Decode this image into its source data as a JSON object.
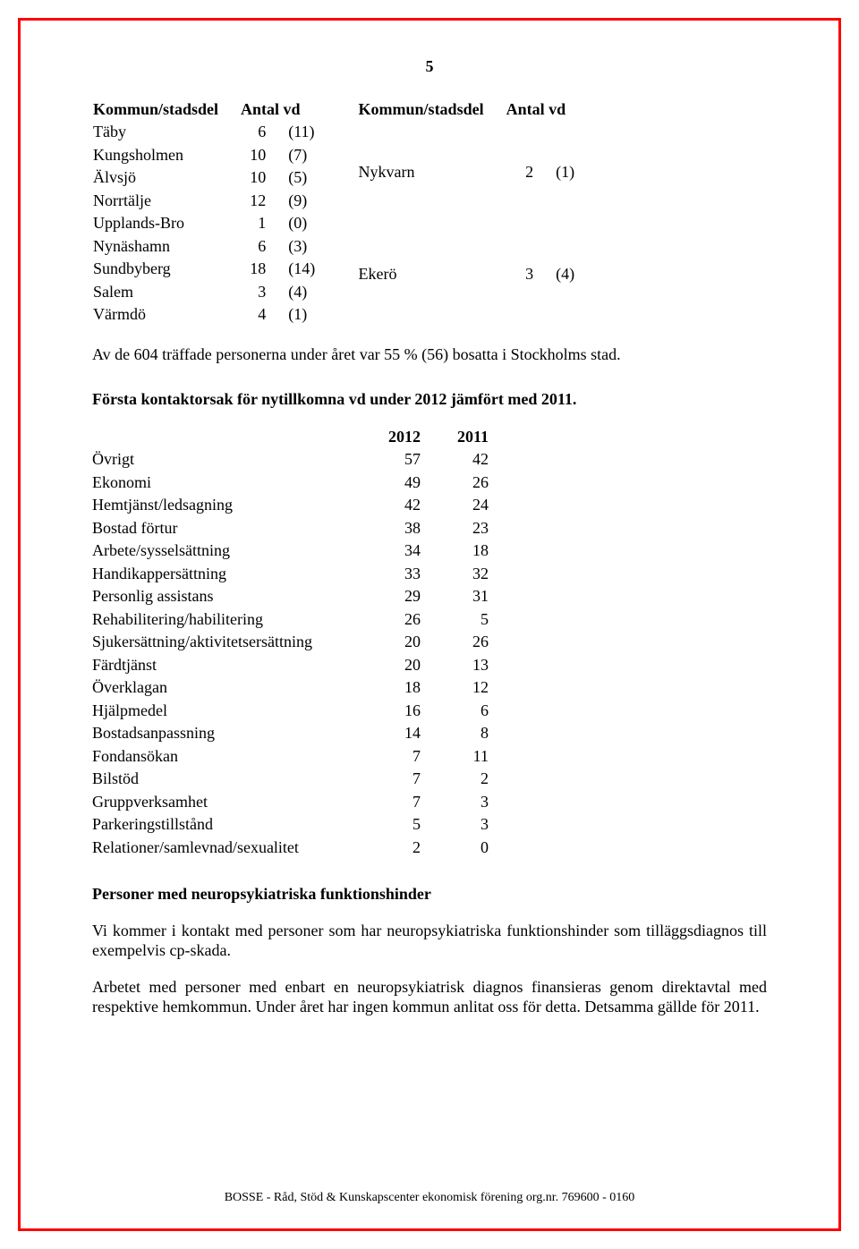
{
  "page_number": "5",
  "kommun_table": {
    "header_left": "Kommun/stadsdel",
    "header_left_num": "Antal vd",
    "header_right": "Kommun/stadsdel",
    "header_right_num": "Antal vd",
    "left_rows": [
      {
        "name": "Täby",
        "n": "6",
        "p": "(11)"
      },
      {
        "name": "Kungsholmen",
        "n": "10",
        "p": "(7)"
      },
      {
        "name": "Älvsjö",
        "n": "10",
        "p": "(5)"
      },
      {
        "name": "Norrtälje",
        "n": "12",
        "p": "(9)"
      },
      {
        "name": "Upplands-Bro",
        "n": "1",
        "p": "(0)"
      },
      {
        "name": "Nynäshamn",
        "n": "6",
        "p": "(3)"
      },
      {
        "name": "Sundbyberg",
        "n": "18",
        "p": "(14)"
      },
      {
        "name": "Salem",
        "n": "3",
        "p": "(4)"
      },
      {
        "name": "Värmdö",
        "n": "4",
        "p": "(1)"
      }
    ],
    "right_rows": [
      {
        "name": "Nykvarn",
        "n": "2",
        "p": "(1)"
      },
      {
        "name": "Ekerö",
        "n": "3",
        "p": "(4)"
      }
    ]
  },
  "para1": "Av de 604 träffade personerna under året var 55 % (56) bosatta i Stockholms stad.",
  "heading2": "Första kontaktorsak för nytillkomna vd under 2012 jämfört med 2011.",
  "stats_table": {
    "col1": "2012",
    "col2": "2011",
    "rows": [
      {
        "label": "Övrigt",
        "a": "57",
        "b": "42"
      },
      {
        "label": "Ekonomi",
        "a": "49",
        "b": "26"
      },
      {
        "label": "Hemtjänst/ledsagning",
        "a": "42",
        "b": "24"
      },
      {
        "label": "Bostad förtur",
        "a": "38",
        "b": "23"
      },
      {
        "label": "Arbete/sysselsättning",
        "a": "34",
        "b": "18"
      },
      {
        "label": "Handikappersättning",
        "a": "33",
        "b": "32"
      },
      {
        "label": "Personlig assistans",
        "a": "29",
        "b": "31"
      },
      {
        "label": "Rehabilitering/habilitering",
        "a": "26",
        "b": "5"
      },
      {
        "label": "Sjukersättning/aktivitetsersättning",
        "a": "20",
        "b": "26"
      },
      {
        "label": "Färdtjänst",
        "a": "20",
        "b": "13"
      },
      {
        "label": "Överklagan",
        "a": "18",
        "b": "12"
      },
      {
        "label": "Hjälpmedel",
        "a": "16",
        "b": "6"
      },
      {
        "label": "Bostadsanpassning",
        "a": "14",
        "b": "8"
      },
      {
        "label": "Fondansökan",
        "a": "7",
        "b": "11"
      },
      {
        "label": "Bilstöd",
        "a": "7",
        "b": "2"
      },
      {
        "label": "Gruppverksamhet",
        "a": "7",
        "b": "3"
      },
      {
        "label": "Parkeringstillstånd",
        "a": "5",
        "b": "3"
      },
      {
        "label": "Relationer/samlevnad/sexualitet",
        "a": "2",
        "b": "0"
      }
    ]
  },
  "heading3": "Personer med neuropsykiatriska funktionshinder",
  "para3a": "Vi kommer i kontakt med personer som har neuropsykiatriska funktionshinder som tilläggsdiagnos till exempelvis cp-skada.",
  "para3b": "Arbetet med personer med enbart en neuropsykiatrisk diagnos finansieras genom direktavtal med respektive hemkommun. Under året har ingen kommun anlitat oss för detta. Detsamma gällde för 2011.",
  "footer": "BOSSE - Råd, Stöd & Kunskapscenter ekonomisk förening org.nr. 769600 - 0160"
}
